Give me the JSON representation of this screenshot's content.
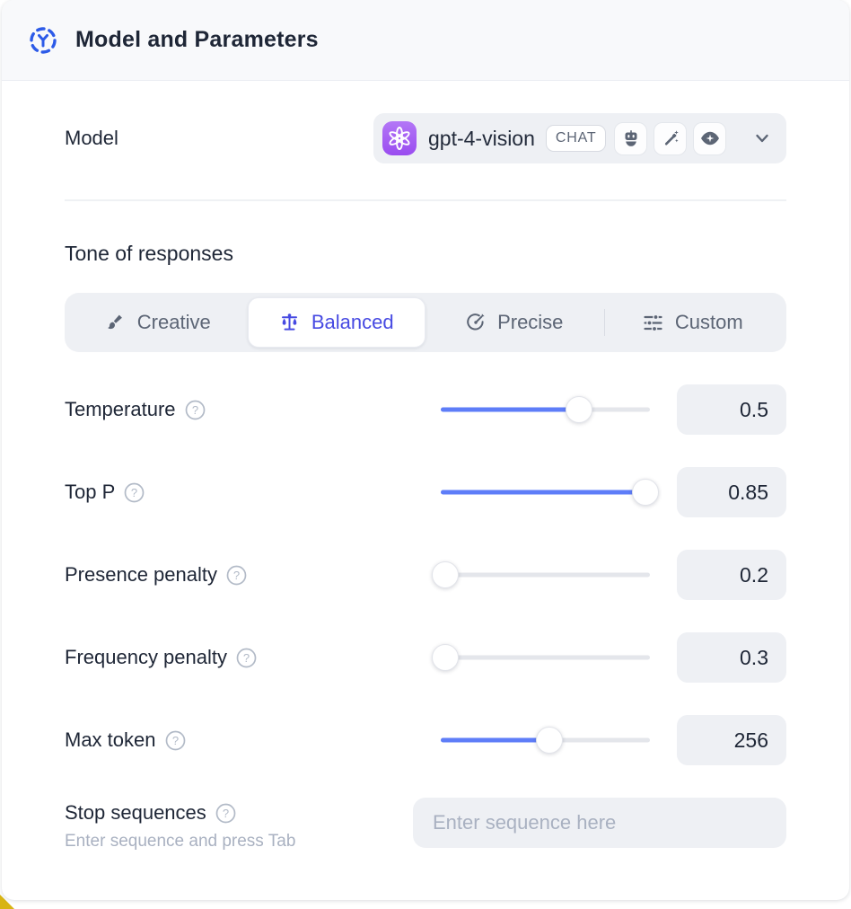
{
  "header": {
    "title": "Model and Parameters",
    "icon": "model-hub-icon"
  },
  "model_row": {
    "label": "Model",
    "selected_model": "gpt-4-vision",
    "type_badge": "CHAT",
    "provider_icon": "openai-logo",
    "capability_icons": [
      "robot-icon",
      "magic-wand-icon",
      "vision-eye-icon"
    ]
  },
  "tone": {
    "heading": "Tone of responses",
    "options": [
      {
        "label": "Creative",
        "icon": "paintbrush-icon",
        "selected": false
      },
      {
        "label": "Balanced",
        "icon": "balance-scale-icon",
        "selected": true
      },
      {
        "label": "Precise",
        "icon": "target-arrow-icon",
        "selected": false
      },
      {
        "label": "Custom",
        "icon": "sliders-icon",
        "selected": false
      }
    ]
  },
  "parameters": [
    {
      "label": "Temperature",
      "value": "0.5",
      "fill_pct": 66
    },
    {
      "label": "Top P",
      "value": "0.85",
      "fill_pct": 98
    },
    {
      "label": "Presence penalty",
      "value": "0.2",
      "fill_pct": 2
    },
    {
      "label": "Frequency penalty",
      "value": "0.3",
      "fill_pct": 2
    },
    {
      "label": "Max token",
      "value": "256",
      "fill_pct": 52
    }
  ],
  "stop_sequences": {
    "label": "Stop sequences",
    "helper": "Enter sequence and press Tab",
    "placeholder": "Enter sequence here"
  },
  "colors": {
    "accent_slider_blue": "#5e7df8",
    "selected_tab_indigo": "#474ae2",
    "header_icon_blue": "#2d5be8",
    "openai_badge_purple": "#9a4cf0",
    "field_background": "#eef0f4",
    "corner_accent_yellow": "#d8b413"
  }
}
